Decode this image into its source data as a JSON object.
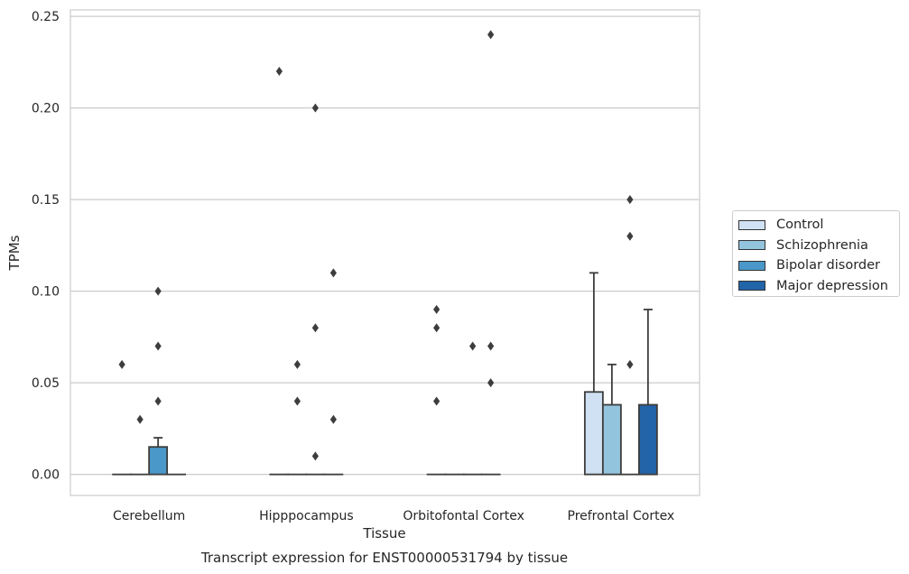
{
  "chart_data": {
    "type": "bar",
    "title": "Transcript expression for ENST00000531794 by tissue",
    "xlabel": "Tissue",
    "ylabel": "TPMs",
    "ylim": [
      -0.0115,
      0.2535
    ],
    "yticks": [
      "0.00",
      "0.05",
      "0.10",
      "0.15",
      "0.20",
      "0.25"
    ],
    "grid": true,
    "legend_position": "right",
    "categories": [
      "Cerebellum",
      "Hipppocampus",
      "Orbitofontal Cortex",
      "Prefrontal Cortex"
    ],
    "series": [
      {
        "name": "Control",
        "color": "#cfe1f2",
        "values": [
          0.0,
          0.0,
          0.0,
          0.045
        ],
        "whisker": [
          0.0,
          0.0,
          0.0,
          0.11
        ],
        "outliers": [
          [
            0.06
          ],
          [
            0.22
          ],
          [
            0.04,
            0.08,
            0.09
          ],
          []
        ]
      },
      {
        "name": "Schizophrenia",
        "color": "#93c4de",
        "values": [
          0.0,
          0.0,
          0.0,
          0.038
        ],
        "whisker": [
          0.0,
          0.0,
          0.0,
          0.06
        ],
        "outliers": [
          [
            0.03
          ],
          [
            0.04,
            0.06
          ],
          [],
          []
        ]
      },
      {
        "name": "Bipolar disorder",
        "color": "#4a98c9",
        "values": [
          0.015,
          0.0,
          0.0,
          0.0
        ],
        "whisker": [
          0.02,
          0.0,
          0.0,
          0.0
        ],
        "outliers": [
          [
            0.04,
            0.07,
            0.1
          ],
          [
            0.01,
            0.08,
            0.2
          ],
          [
            0.07
          ],
          [
            0.06,
            0.13,
            0.15
          ]
        ]
      },
      {
        "name": "Major depression",
        "color": "#2264a8",
        "values": [
          0.0,
          0.0,
          0.0,
          0.038
        ],
        "whisker": [
          0.0,
          0.0,
          0.0,
          0.09
        ],
        "outliers": [
          [],
          [
            0.03,
            0.11
          ],
          [
            0.05,
            0.07,
            0.24
          ],
          []
        ]
      }
    ]
  }
}
